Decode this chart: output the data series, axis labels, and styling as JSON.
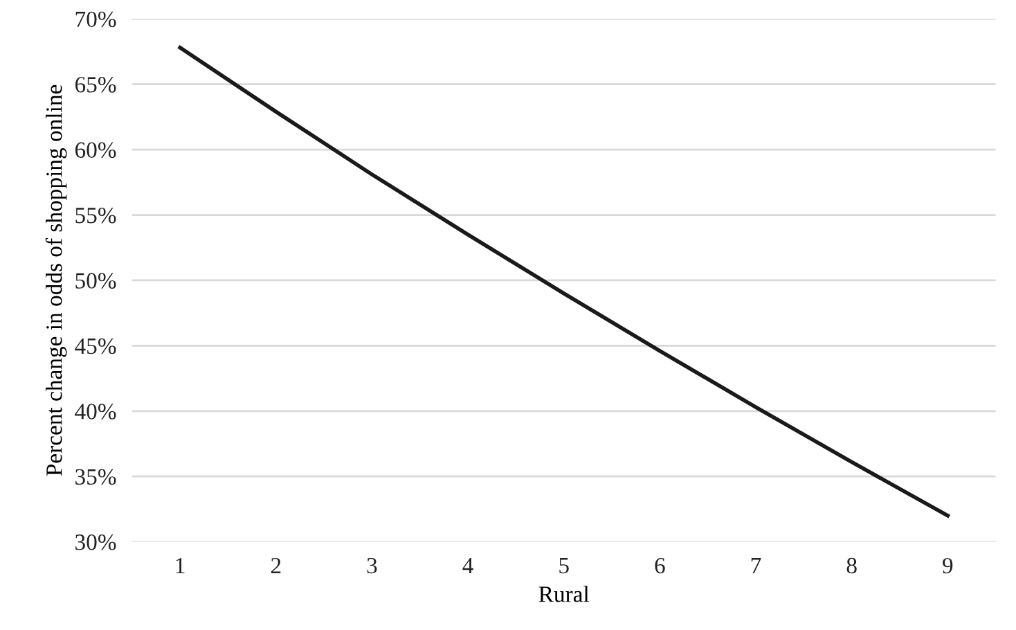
{
  "chart_data": {
    "type": "line",
    "xlabel": "Rural",
    "ylabel": "Percent change in odds of shopping online",
    "categories": [
      "1",
      "2",
      "3",
      "4",
      "5",
      "6",
      "7",
      "8",
      "9"
    ],
    "series": [
      {
        "color": "#1a1a1a",
        "values": [
          67.8,
          62.9,
          58.1,
          53.5,
          49.0,
          44.6,
          40.3,
          36.1,
          32.0
        ]
      }
    ],
    "ylim": [
      30,
      70
    ],
    "yticks": [
      {
        "value": 30,
        "label": "30%"
      },
      {
        "value": 35,
        "label": "35%"
      },
      {
        "value": 40,
        "label": "40%"
      },
      {
        "value": 45,
        "label": "45%"
      },
      {
        "value": 50,
        "label": "50%"
      },
      {
        "value": 55,
        "label": "55%"
      },
      {
        "value": 60,
        "label": "60%"
      },
      {
        "value": 65,
        "label": "65%"
      },
      {
        "value": 70,
        "label": "70%"
      }
    ],
    "grid": "y",
    "legend": false,
    "marker": "none",
    "line_style": "solid"
  }
}
